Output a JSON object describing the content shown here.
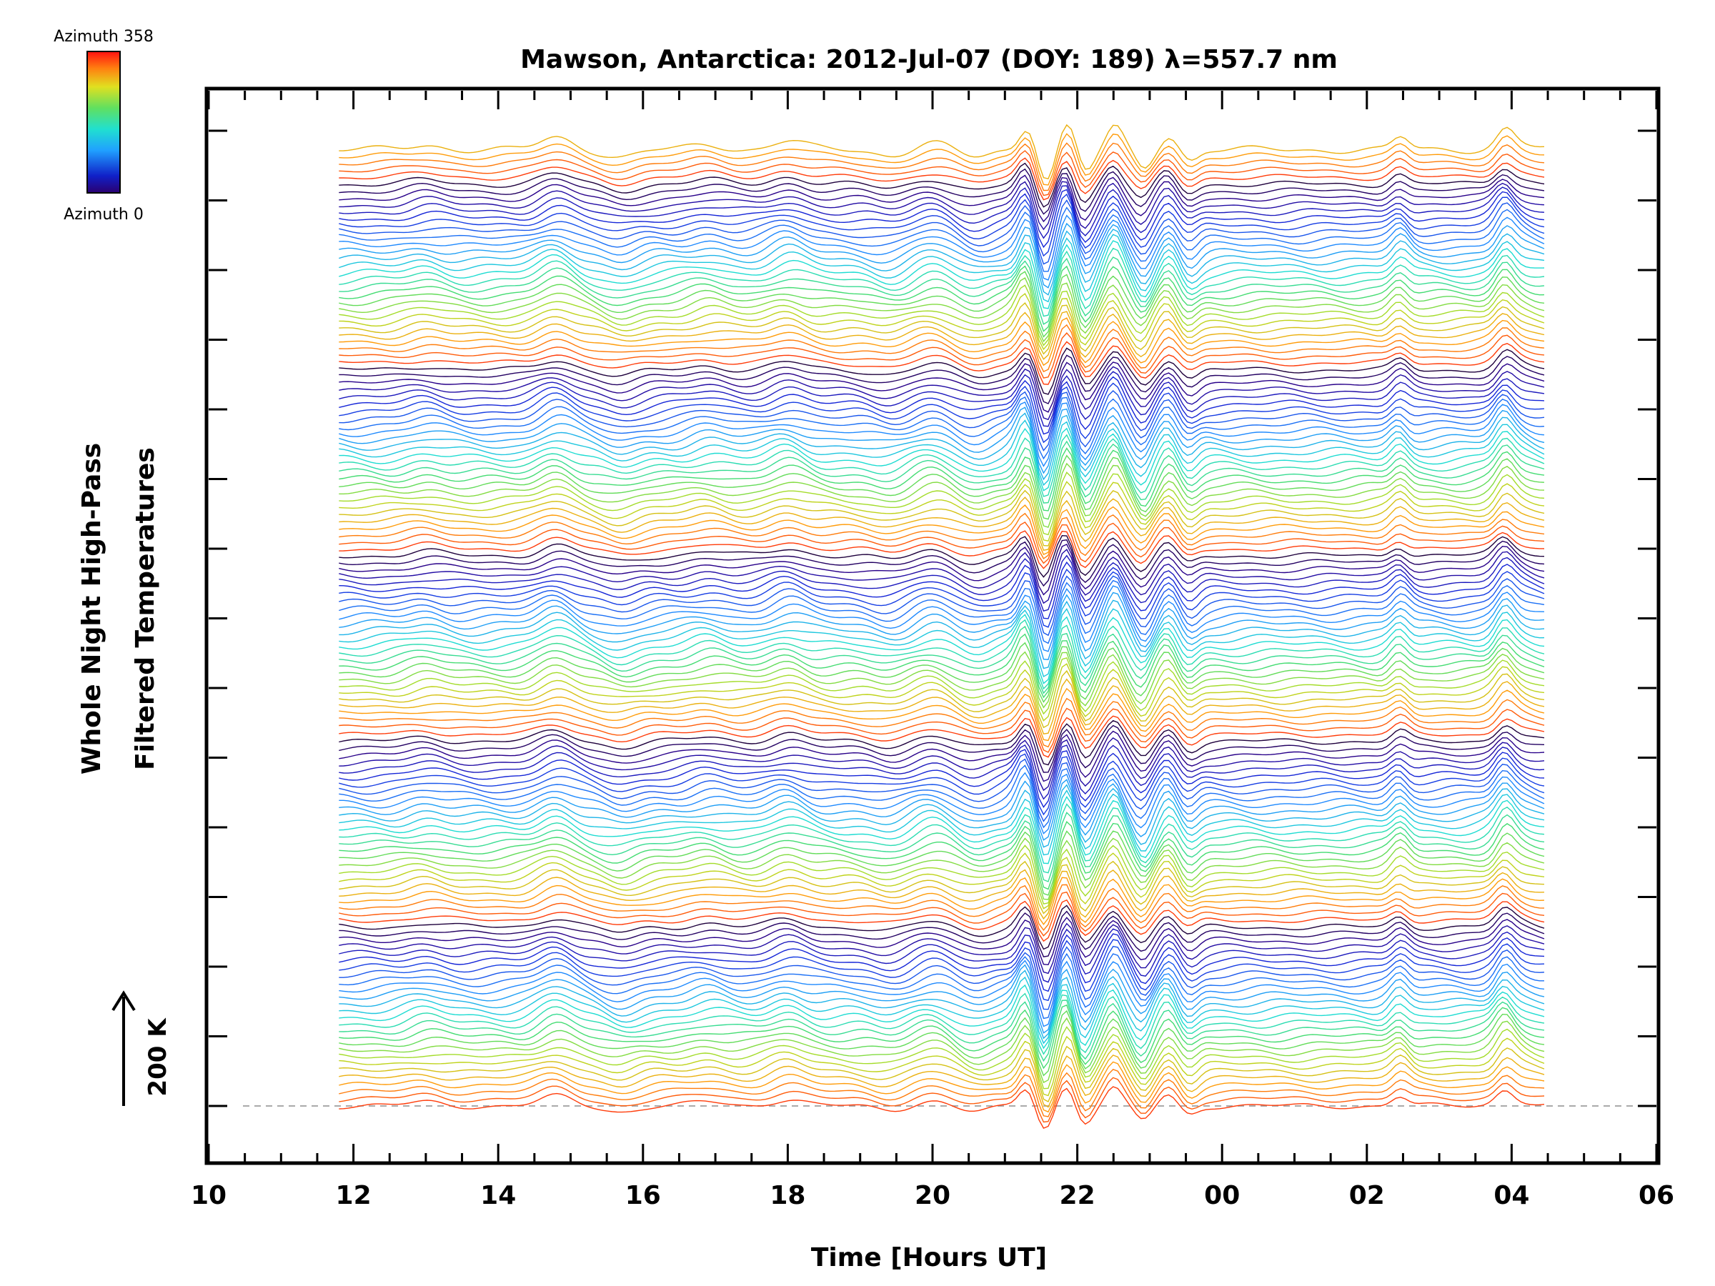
{
  "chart_data": {
    "type": "line",
    "title": "Mawson, Antarctica: 2012-Jul-07 (DOY: 189) λ=557.7 nm",
    "xlabel": "Time [Hours UT]",
    "ylabel": [
      "Whole Night High-Pass",
      "Filtered Temperatures"
    ],
    "scale_bar_label": "200 K",
    "colorbar": {
      "top_label": "Azimuth 358",
      "bottom_label": "Azimuth 0",
      "min": 0,
      "max": 358,
      "colormap": "rainbow"
    },
    "x_ticks": [
      "10",
      "12",
      "14",
      "16",
      "18",
      "20",
      "22",
      "00",
      "02",
      "04",
      "06"
    ],
    "xlim": [
      10,
      30
    ],
    "time_range_hours": [
      11.8,
      28.45
    ],
    "series_count": 140,
    "baseline_line": {
      "style": "dashed",
      "color": "#aaaaaa"
    },
    "feature_events_hours": [
      {
        "t": 21.3,
        "amp": 1.2
      },
      {
        "t": 21.55,
        "amp": -1.5
      },
      {
        "t": 21.85,
        "amp": 1.3
      },
      {
        "t": 22.1,
        "amp": -1.1
      },
      {
        "t": 22.5,
        "amp": 1.1
      },
      {
        "t": 22.9,
        "amp": -0.9
      },
      {
        "t": 23.25,
        "amp": 0.7
      },
      {
        "t": 23.55,
        "amp": -0.5
      },
      {
        "t": 26.45,
        "amp": 0.6
      },
      {
        "t": 27.9,
        "amp": 0.7
      }
    ]
  }
}
